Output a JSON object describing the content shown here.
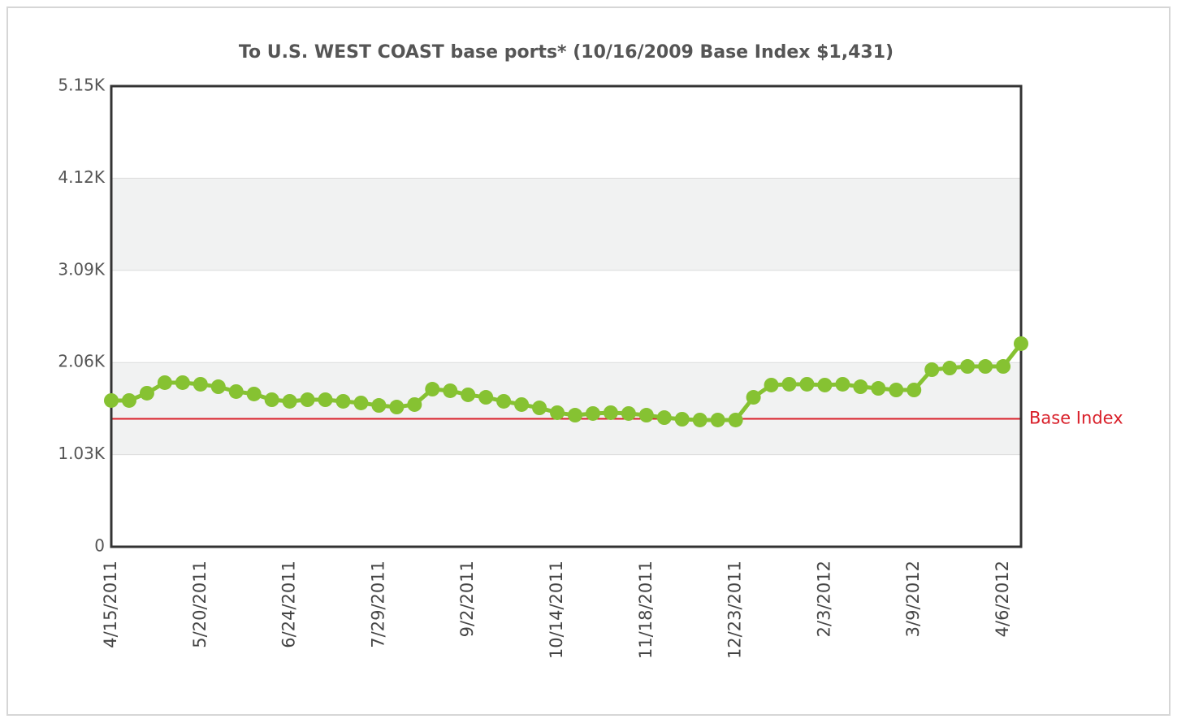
{
  "chart_data": {
    "type": "line",
    "title": "To U.S. WEST COAST base ports* (10/16/2009 Base Index $1,431)",
    "categories": [
      "4/15/2011",
      null,
      null,
      null,
      null,
      "5/20/2011",
      null,
      null,
      null,
      null,
      "6/24/2011",
      null,
      null,
      null,
      null,
      "7/29/2011",
      null,
      null,
      null,
      null,
      "9/2/2011",
      null,
      null,
      null,
      null,
      "10/14/2011",
      null,
      null,
      null,
      null,
      "11/18/2011",
      null,
      null,
      null,
      null,
      "12/23/2011",
      null,
      null,
      null,
      null,
      "2/3/2012",
      null,
      null,
      null,
      null,
      "3/9/2012",
      null,
      null,
      null,
      null,
      "4/6/2012",
      null
    ],
    "series": [
      {
        "name": null,
        "color": "#86c232",
        "values": [
          1635,
          1635,
          1717,
          1835,
          1835,
          1817,
          1789,
          1735,
          1708,
          1644,
          1626,
          1644,
          1644,
          1626,
          1608,
          1580,
          1562,
          1590,
          1762,
          1744,
          1699,
          1671,
          1626,
          1590,
          1553,
          1499,
          1471,
          1490,
          1499,
          1490,
          1471,
          1444,
          1426,
          1417,
          1417,
          1417,
          1671,
          1808,
          1817,
          1817,
          1808,
          1817,
          1789,
          1771,
          1753,
          1753,
          1980,
          1998,
          2016,
          2016,
          2016,
          2271
        ]
      }
    ],
    "ylim": [
      0,
      5150
    ],
    "yticks": [
      0,
      {
        "value": 1030,
        "label": "1.03K"
      },
      {
        "value": 2060,
        "label": "2.06K"
      },
      {
        "value": 3090,
        "label": "3.09K"
      },
      {
        "value": 4120,
        "label": "4.12K"
      },
      {
        "value": 5150,
        "label": "5.15K"
      }
    ],
    "reference_line": {
      "value": 1431,
      "label": "Base Index",
      "color": "#d9202a"
    },
    "grid": true
  }
}
